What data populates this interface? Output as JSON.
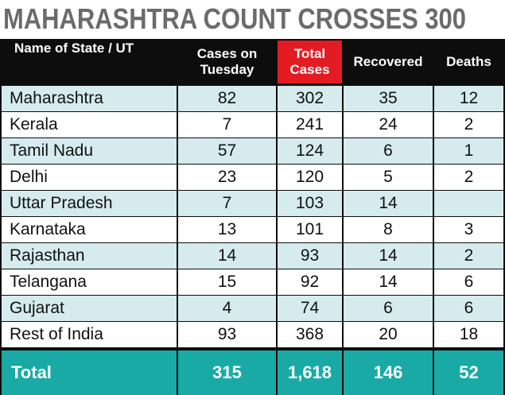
{
  "title": "MAHARASHTRA COUNT CROSSES 300",
  "chart_data": {
    "type": "table",
    "title": "MAHARASHTRA COUNT CROSSES 300",
    "columns": [
      "Name of State / UT",
      "Cases on Tuesday",
      "Total Cases",
      "Recovered",
      "Deaths"
    ],
    "header": {
      "c0": [
        "Name of State / UT"
      ],
      "c1": [
        "Cases on",
        "Tuesday"
      ],
      "c2": [
        "Total",
        "Cases"
      ],
      "c3": [
        "Recovered"
      ],
      "c4": [
        "Deaths"
      ]
    },
    "rows": [
      {
        "name": "Maharashtra",
        "tuesday": "82",
        "total": "302",
        "recovered": "35",
        "deaths": "12"
      },
      {
        "name": "Kerala",
        "tuesday": "7",
        "total": "241",
        "recovered": "24",
        "deaths": "2"
      },
      {
        "name": "Tamil Nadu",
        "tuesday": "57",
        "total": "124",
        "recovered": "6",
        "deaths": "1"
      },
      {
        "name": "Delhi",
        "tuesday": "23",
        "total": "120",
        "recovered": "5",
        "deaths": "2"
      },
      {
        "name": "Uttar Pradesh",
        "tuesday": "7",
        "total": "103",
        "recovered": "14",
        "deaths": ""
      },
      {
        "name": "Karnataka",
        "tuesday": "13",
        "total": "101",
        "recovered": "8",
        "deaths": "3"
      },
      {
        "name": "Rajasthan",
        "tuesday": "14",
        "total": "93",
        "recovered": "14",
        "deaths": "2"
      },
      {
        "name": "Telangana",
        "tuesday": "15",
        "total": "92",
        "recovered": "14",
        "deaths": "6"
      },
      {
        "name": "Gujarat",
        "tuesday": "4",
        "total": "74",
        "recovered": "6",
        "deaths": "6"
      },
      {
        "name": "Rest of India",
        "tuesday": "93",
        "total": "368",
        "recovered": "20",
        "deaths": "18"
      }
    ],
    "total": {
      "name": "Total",
      "tuesday": "315",
      "total": "1,618",
      "recovered": "146",
      "deaths": "52"
    }
  },
  "colors": {
    "header_bg": "#0d0d0d",
    "highlight_header": "#e31c24",
    "row_tint": "#d6ebee",
    "total_bg": "#19aaa6",
    "title_text": "#6b6b6b"
  }
}
